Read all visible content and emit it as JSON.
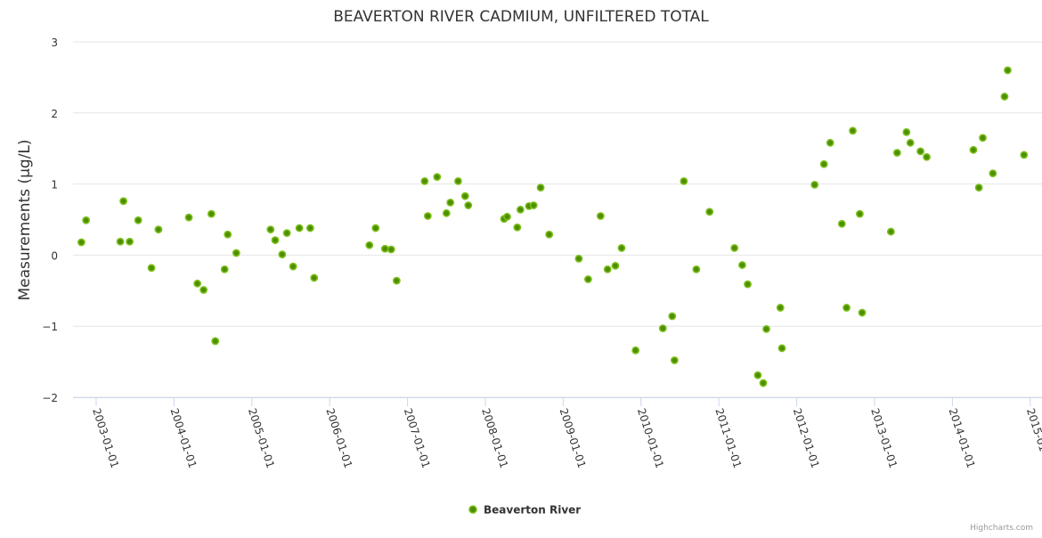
{
  "chart_data": {
    "type": "scatter",
    "title": "BEAVERTON RIVER CADMIUM, UNFILTERED TOTAL",
    "xlabel": "",
    "ylabel": "Measurements (µg/L)",
    "ylim": [
      -2,
      3
    ],
    "yticks": [
      3,
      2,
      1,
      0,
      -1,
      -2
    ],
    "ytick_labels": [
      "3",
      "2",
      "1",
      "0",
      "−1",
      "−2"
    ],
    "xlim": [
      2002.7,
      2015.15
    ],
    "xticks": [
      2003,
      2004,
      2005,
      2006,
      2007,
      2008,
      2009,
      2010,
      2011,
      2012,
      2013,
      2014,
      2015
    ],
    "xtick_labels": [
      "2003-01-01",
      "2004-01-01",
      "2005-01-01",
      "2006-01-01",
      "2007-01-01",
      "2008-01-01",
      "2009-01-01",
      "2010-01-01",
      "2011-01-01",
      "2012-01-01",
      "2013-01-01",
      "2014-01-01",
      "2015-01-01"
    ],
    "grid": true,
    "legend_position": "bottom-center",
    "credits": "Highcharts.com",
    "series": [
      {
        "name": "Beaverton River",
        "color": "#4e8f00",
        "border_color": "#7cbf1c",
        "x": [
          2002.81,
          2002.87,
          2003.31,
          2003.35,
          2003.43,
          2003.54,
          2003.71,
          2003.8,
          2004.19,
          2004.3,
          2004.38,
          2004.48,
          2004.53,
          2004.65,
          2004.69,
          2004.8,
          2005.24,
          2005.3,
          2005.39,
          2005.45,
          2005.53,
          2005.61,
          2005.75,
          2005.8,
          2006.51,
          2006.59,
          2006.71,
          2006.79,
          2006.86,
          2007.22,
          2007.26,
          2007.38,
          2007.5,
          2007.55,
          2007.65,
          2007.74,
          2007.78,
          2008.24,
          2008.28,
          2008.41,
          2008.45,
          2008.56,
          2008.62,
          2008.71,
          2008.82,
          2009.2,
          2009.32,
          2009.48,
          2009.57,
          2009.67,
          2009.75,
          2009.93,
          2010.28,
          2010.4,
          2010.43,
          2010.55,
          2010.71,
          2010.88,
          2011.2,
          2011.3,
          2011.37,
          2011.5,
          2011.57,
          2011.61,
          2011.79,
          2011.81,
          2012.23,
          2012.35,
          2012.43,
          2012.58,
          2012.64,
          2012.72,
          2012.81,
          2012.84,
          2013.21,
          2013.29,
          2013.41,
          2013.46,
          2013.59,
          2013.67,
          2014.27,
          2014.34,
          2014.39,
          2014.52,
          2014.67,
          2014.71,
          2014.92
        ],
        "y": [
          0.18,
          0.49,
          0.19,
          0.76,
          0.19,
          0.49,
          -0.18,
          0.36,
          0.53,
          -0.4,
          -0.49,
          0.58,
          -1.21,
          -0.2,
          0.29,
          0.03,
          0.36,
          0.21,
          0.01,
          0.31,
          -0.16,
          0.38,
          0.38,
          -0.32,
          0.14,
          0.38,
          0.09,
          0.08,
          -0.36,
          1.04,
          0.55,
          1.1,
          0.59,
          0.74,
          1.04,
          0.83,
          0.7,
          0.51,
          0.54,
          0.39,
          0.64,
          0.69,
          0.7,
          0.95,
          0.29,
          -0.05,
          -0.34,
          0.55,
          -0.2,
          -0.15,
          0.1,
          -1.34,
          -1.03,
          -0.86,
          -1.48,
          1.04,
          -0.2,
          0.61,
          0.1,
          -0.14,
          -0.41,
          -1.69,
          -1.8,
          -1.04,
          -0.74,
          -1.31,
          0.99,
          1.28,
          1.58,
          0.44,
          -0.74,
          1.75,
          0.58,
          -0.81,
          0.33,
          1.44,
          1.73,
          1.58,
          1.46,
          1.38,
          1.48,
          0.95,
          1.65,
          1.15,
          2.23,
          2.6,
          1.41
        ]
      }
    ]
  }
}
